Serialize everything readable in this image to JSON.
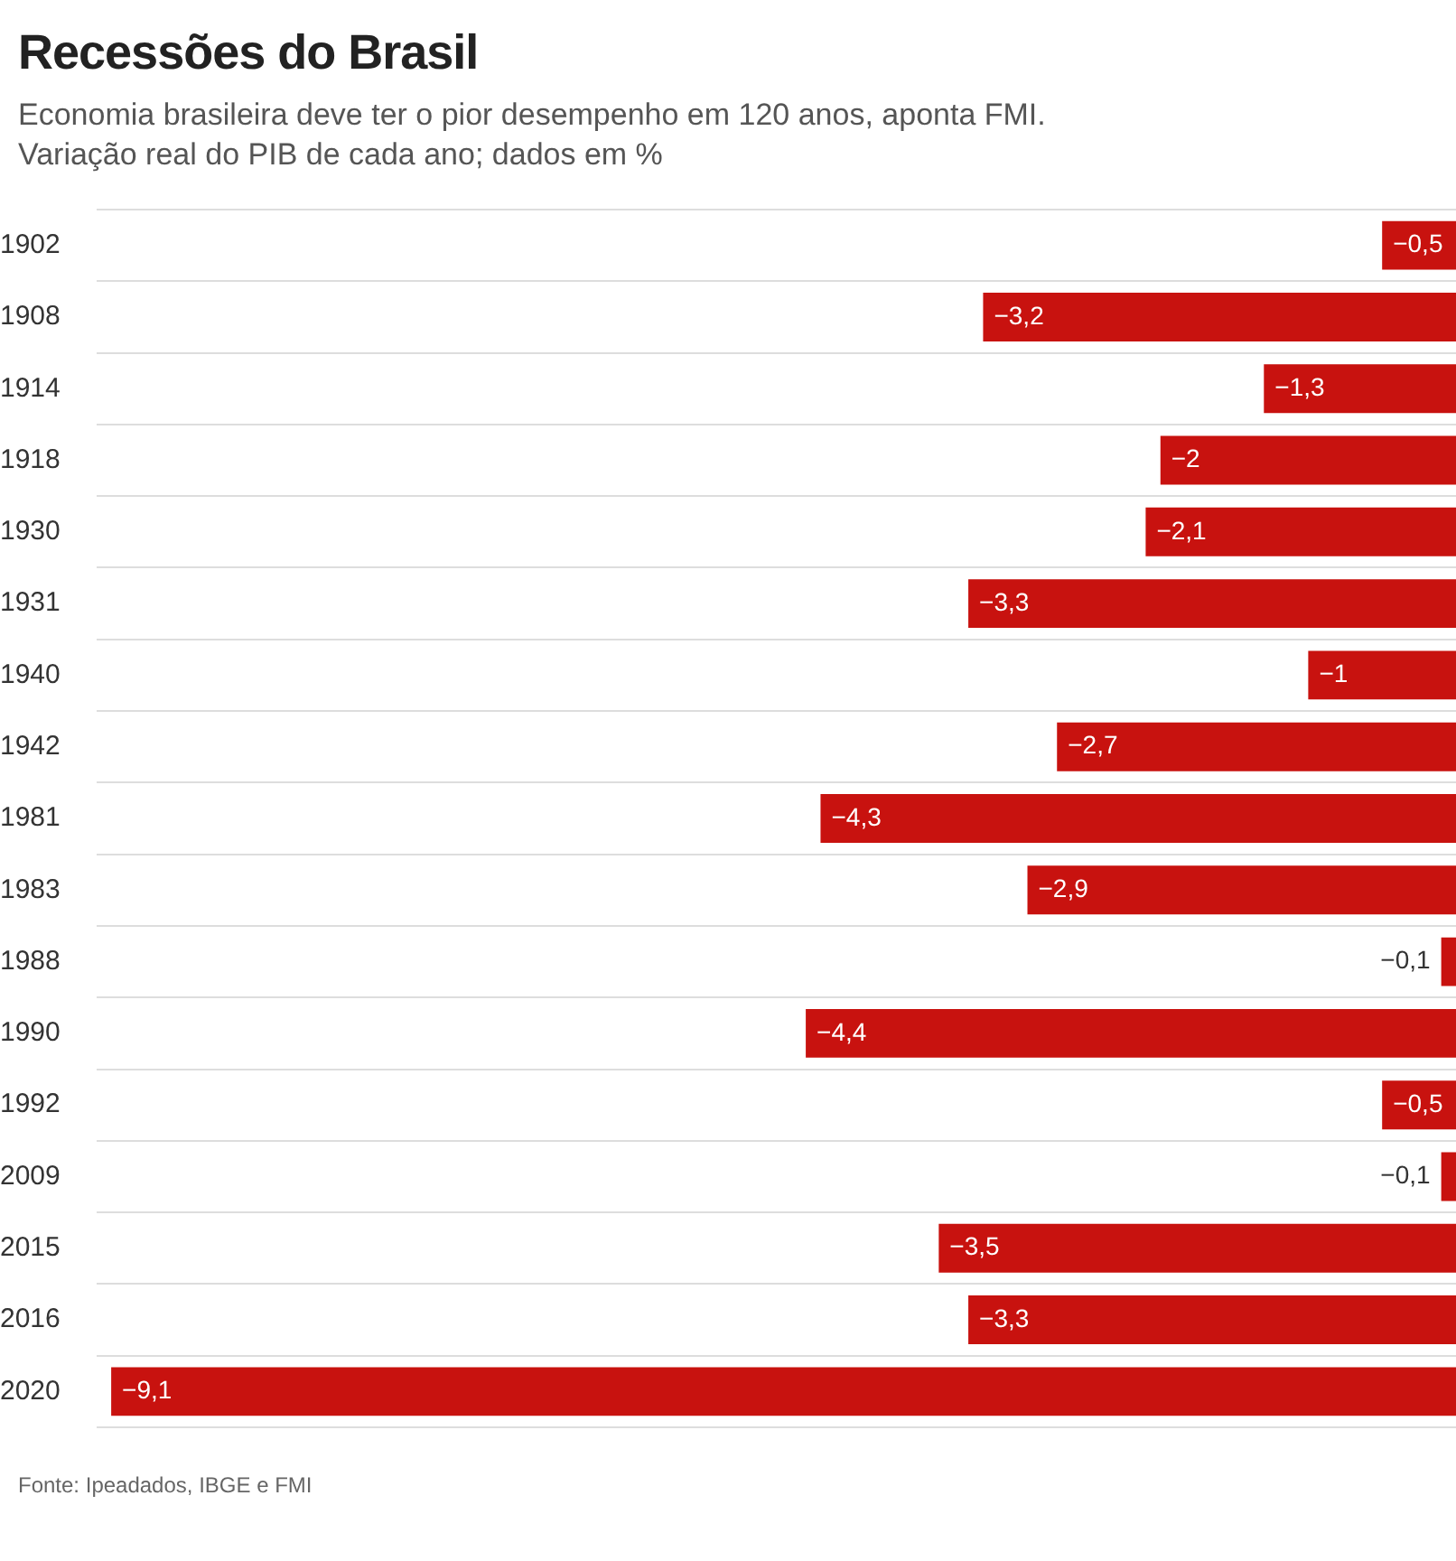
{
  "chart_data": {
    "type": "bar",
    "orientation": "horizontal",
    "title": "Recessões do Brasil",
    "subtitle": "Economia brasileira deve ter o pior desempenho em 120 anos, aponta FMI.\nVariação real do PIB de cada ano; dados em %",
    "categories": [
      "1902",
      "1908",
      "1914",
      "1918",
      "1930",
      "1931",
      "1940",
      "1942",
      "1981",
      "1983",
      "1988",
      "1990",
      "1992",
      "2009",
      "2015",
      "2016",
      "2020"
    ],
    "values": [
      -0.5,
      -3.2,
      -1.3,
      -2,
      -2.1,
      -3.3,
      -1,
      -2.7,
      -4.3,
      -2.9,
      -0.1,
      -4.4,
      -0.5,
      -0.1,
      -3.5,
      -3.3,
      -9.1
    ],
    "value_labels": [
      "−0,5",
      "−3,2",
      "−1,3",
      "−2",
      "−2,1",
      "−3,3",
      "−1",
      "−2,7",
      "−4,3",
      "−2,9",
      "−0,1",
      "−4,4",
      "−0,5",
      "−0,1",
      "−3,5",
      "−3,3",
      "−9,1"
    ],
    "color": "#c8120f",
    "xlim": [
      -9.2,
      0
    ],
    "grid": "y",
    "tick_labels": "y",
    "legend": false,
    "annotations": [
      "Fonte: Ipeadados, IBGE e FMI"
    ]
  }
}
